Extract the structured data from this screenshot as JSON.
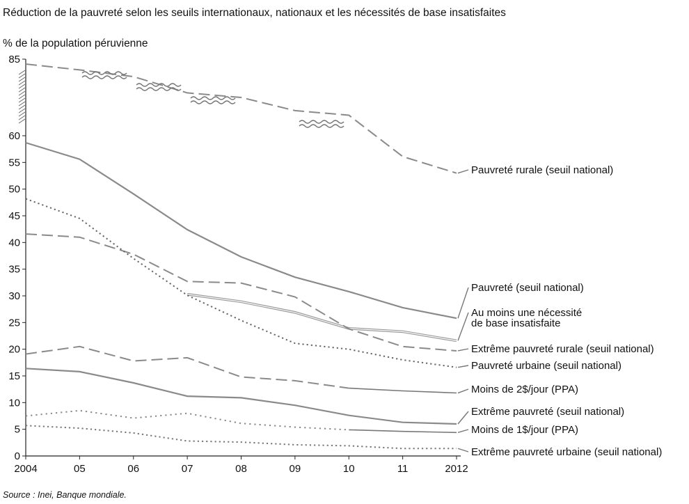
{
  "title": "Réduction de la pauvreté selon les seuils internationaux, nationaux et les nécessités de base insatisfaites",
  "ylabel": "% de la population péruvienne",
  "source": "Source : Inei, Banque mondiale.",
  "chart_data": {
    "type": "line",
    "x": [
      2004,
      2005,
      2006,
      2007,
      2008,
      2009,
      2010,
      2011,
      2012
    ],
    "x_tick_labels": [
      "2004",
      "05",
      "06",
      "07",
      "08",
      "09",
      "10",
      "11",
      "2012"
    ],
    "y_ticks": [
      "0",
      "5",
      "10",
      "15",
      "20",
      "25",
      "30",
      "35",
      "40",
      "45",
      "50",
      "55",
      "60",
      "85"
    ],
    "ylim": [
      0,
      85
    ],
    "y_axis_break": [
      60,
      85
    ],
    "grid": false,
    "legend": "direct labels at right",
    "series": [
      {
        "name": "Pauvreté rurale (seuil national)",
        "style": "long-dash",
        "color": "#8a8a8a",
        "values": [
          83.4,
          81.5,
          79.3,
          74.0,
          72.5,
          68.2,
          66.7,
          56.1,
          53.0
        ]
      },
      {
        "name": "Pauvreté (seuil national)",
        "style": "solid",
        "color": "#8a8a8a",
        "values": [
          58.7,
          55.6,
          49.1,
          42.4,
          37.3,
          33.5,
          30.8,
          27.8,
          25.8
        ]
      },
      {
        "name": "Au moins une nécessité de base insatisfaite",
        "style": "double",
        "color": "#9a9a9a",
        "values": [
          null,
          null,
          null,
          30.3,
          28.9,
          26.9,
          23.9,
          23.3,
          21.6
        ]
      },
      {
        "name": "Extrême pauvreté rurale (seuil national)",
        "style": "long-dash",
        "color": "#8a8a8a",
        "values": [
          41.6,
          41.0,
          37.8,
          32.7,
          32.4,
          29.8,
          23.8,
          20.5,
          19.7
        ]
      },
      {
        "name": "Pauvreté urbaine (seuil national)",
        "style": "dotted",
        "color": "#666666",
        "values": [
          48.2,
          44.5,
          37.0,
          30.1,
          25.4,
          21.1,
          20.0,
          18.0,
          16.6
        ]
      },
      {
        "name": "Moins de 2$/jour (PPA)",
        "style": "dash-then-solid",
        "color": "#8a8a8a",
        "solid_from": 6,
        "values": [
          19.1,
          20.5,
          17.8,
          18.4,
          14.8,
          14.1,
          12.7,
          12.2,
          11.8
        ]
      },
      {
        "name": "Extrême pauvreté (seuil national)",
        "style": "solid",
        "color": "#8a8a8a",
        "values": [
          16.4,
          15.8,
          13.7,
          11.2,
          10.9,
          9.5,
          7.6,
          6.3,
          6.0
        ]
      },
      {
        "name": "Moins de 1$/jour (PPA)",
        "style": "dot-then-solid",
        "color": "#8a8a8a",
        "solid_from": 6,
        "values": [
          7.5,
          8.5,
          7.1,
          8.0,
          6.1,
          5.4,
          4.9,
          4.6,
          4.4
        ]
      },
      {
        "name": "Extrême pauvreté urbaine (seuil national)",
        "style": "dotted",
        "color": "#777777",
        "values": [
          5.7,
          5.2,
          4.3,
          2.8,
          2.6,
          2.1,
          1.9,
          1.4,
          1.4
        ]
      }
    ],
    "label_lines": [
      [
        "Pauvreté rurale (seuil national)"
      ],
      [
        "Pauvreté (seuil national)"
      ],
      [
        "Au moins une nécessité",
        "de base insatisfaite"
      ],
      [
        "Extrême pauvreté rurale (seuil national)"
      ],
      [
        "Pauvreté urbaine (seuil national)"
      ],
      [
        "Moins de 2$/jour (PPA)"
      ],
      [
        "Extrême pauvreté (seuil national)"
      ],
      [
        "Moins de 1$/jour (PPA)"
      ],
      [
        "Extrême pauvreté urbaine (seuil national)"
      ]
    ]
  }
}
